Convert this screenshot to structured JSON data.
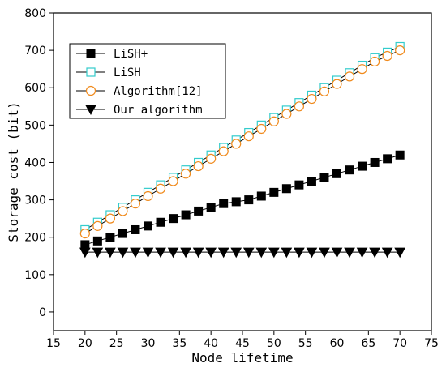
{
  "chart_data": {
    "type": "line",
    "xlabel": "Node lifetime",
    "ylabel": "Storage cost (bit)",
    "xlim": [
      15,
      75
    ],
    "ylim": [
      -50,
      800
    ],
    "xticks": [
      15,
      20,
      25,
      30,
      35,
      40,
      45,
      50,
      55,
      60,
      65,
      70,
      75
    ],
    "yticks": [
      0,
      100,
      200,
      300,
      400,
      500,
      600,
      700,
      800
    ],
    "legend_position": "top-left",
    "x": [
      20,
      22,
      24,
      26,
      28,
      30,
      32,
      34,
      36,
      38,
      40,
      42,
      44,
      46,
      48,
      50,
      52,
      54,
      56,
      58,
      60,
      62,
      64,
      66,
      68,
      70
    ],
    "series": [
      {
        "name": "LiSH+",
        "marker": "filled-square",
        "color": "#000000",
        "values": [
          180,
          190,
          200,
          210,
          220,
          230,
          240,
          250,
          260,
          270,
          280,
          290,
          295,
          300,
          310,
          320,
          330,
          340,
          350,
          360,
          370,
          380,
          390,
          400,
          410,
          420
        ]
      },
      {
        "name": "LiSH",
        "marker": "open-square",
        "color": "#33cccc",
        "values": [
          220,
          240,
          260,
          280,
          300,
          320,
          340,
          360,
          380,
          400,
          420,
          440,
          460,
          480,
          500,
          520,
          540,
          560,
          580,
          600,
          620,
          640,
          660,
          680,
          695,
          710
        ]
      },
      {
        "name": "Algorithm[12]",
        "marker": "open-circle",
        "color": "#f08a1c",
        "values": [
          210,
          230,
          250,
          270,
          290,
          310,
          330,
          350,
          370,
          390,
          410,
          430,
          450,
          470,
          490,
          510,
          530,
          550,
          570,
          590,
          610,
          630,
          650,
          670,
          685,
          700
        ]
      },
      {
        "name": "Our algorithm",
        "marker": "filled-triangle-down",
        "color": "#000000",
        "values": [
          160,
          160,
          160,
          160,
          160,
          160,
          160,
          160,
          160,
          160,
          160,
          160,
          160,
          160,
          160,
          160,
          160,
          160,
          160,
          160,
          160,
          160,
          160,
          160,
          160,
          160
        ]
      }
    ]
  }
}
